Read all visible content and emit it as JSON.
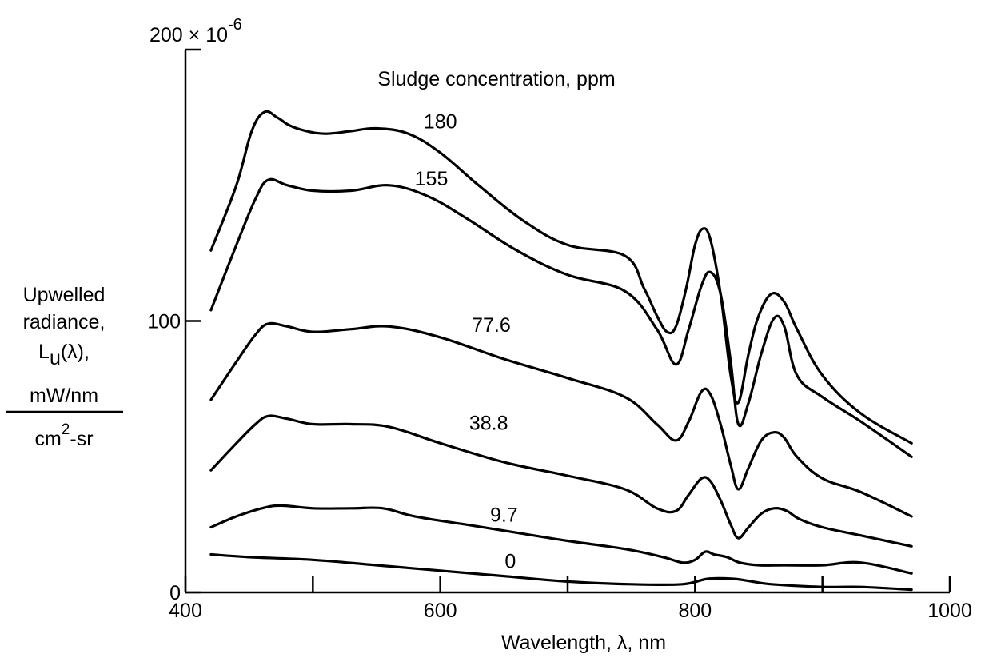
{
  "chart_data": {
    "type": "line",
    "title": "",
    "legend_title": "Sludge concentration, ppm",
    "xlabel": "Wavelength, λ, nm",
    "ylabel_lines": [
      "Upwelled",
      "radiance,",
      "L",
      "u",
      "(λ),"
    ],
    "ylabel_fraction_numerator": "mW/nm",
    "ylabel_fraction_denominator_base": "cm",
    "ylabel_fraction_denominator_exp": "2",
    "ylabel_fraction_denominator_tail": "-sr",
    "y_scale_prefix": "200 × 10",
    "y_scale_exp": "-6",
    "xlim": [
      400,
      1000
    ],
    "ylim": [
      0,
      200
    ],
    "x_ticks": [
      400,
      500,
      600,
      700,
      800,
      900,
      1000
    ],
    "x_tick_labels": [
      "400",
      "",
      "600",
      "",
      "800",
      "",
      "1000"
    ],
    "y_ticks": [
      0,
      100,
      200
    ],
    "y_tick_labels": [
      "0",
      "100",
      ""
    ],
    "series": [
      {
        "name": "180",
        "x": [
          420,
          440,
          452,
          462,
          472,
          482,
          495,
          510,
          530,
          550,
          575,
          600,
          630,
          665,
          700,
          745,
          760,
          770,
          778,
          785,
          793,
          800,
          806,
          812,
          820,
          828,
          834,
          842,
          850,
          860,
          870,
          880,
          900,
          930,
          970
        ],
        "y": [
          126,
          150,
          170,
          177,
          175,
          172,
          170,
          169,
          170,
          171,
          169,
          162,
          150,
          137,
          128,
          124,
          112,
          102,
          96,
          98,
          112,
          128,
          134,
          130,
          110,
          80,
          70,
          88,
          102,
          110,
          107,
          97,
          80,
          66,
          55
        ]
      },
      {
        "name": "155",
        "x": [
          420,
          440,
          455,
          465,
          480,
          500,
          530,
          560,
          590,
          620,
          660,
          700,
          745,
          770,
          785,
          795,
          805,
          812,
          820,
          828,
          834,
          842,
          852,
          862,
          870,
          880,
          900,
          930,
          970
        ],
        "y": [
          104,
          128,
          145,
          152,
          150,
          148,
          148,
          150,
          146,
          138,
          126,
          117,
          111,
          97,
          84,
          97,
          113,
          118,
          110,
          85,
          62,
          70,
          88,
          101,
          98,
          80,
          72,
          63,
          50
        ]
      },
      {
        "name": "77.6",
        "x": [
          420,
          440,
          455,
          465,
          480,
          500,
          530,
          560,
          600,
          650,
          700,
          745,
          770,
          785,
          795,
          805,
          812,
          820,
          828,
          834,
          842,
          852,
          862,
          870,
          880,
          900,
          930,
          970
        ],
        "y": [
          71,
          85,
          95,
          99,
          98,
          96,
          97,
          98,
          94,
          86,
          79,
          72,
          62,
          56,
          63,
          74,
          73,
          62,
          47,
          38,
          46,
          56,
          59,
          57,
          50,
          42,
          37,
          28
        ]
      },
      {
        "name": "38.8",
        "x": [
          420,
          440,
          455,
          465,
          480,
          500,
          530,
          560,
          600,
          650,
          700,
          745,
          770,
          785,
          795,
          805,
          812,
          820,
          828,
          834,
          842,
          852,
          862,
          872,
          882,
          900,
          930,
          970
        ],
        "y": [
          45,
          55,
          62,
          65,
          64,
          62,
          62,
          61,
          55,
          48,
          43,
          38,
          31,
          30,
          36,
          42,
          41,
          34,
          25,
          20,
          24,
          29,
          31,
          30,
          27,
          24,
          21,
          17
        ]
      },
      {
        "name": "9.7",
        "x": [
          420,
          440,
          460,
          475,
          500,
          530,
          555,
          580,
          620,
          660,
          700,
          745,
          775,
          790,
          800,
          808,
          815,
          825,
          835,
          850,
          870,
          900,
          930,
          970
        ],
        "y": [
          24,
          28,
          31,
          32,
          31,
          31,
          31,
          28,
          25,
          22,
          19,
          16,
          13,
          11,
          12,
          15,
          14,
          13,
          11,
          10,
          10,
          10,
          11,
          7
        ]
      },
      {
        "name": "0",
        "x": [
          420,
          450,
          500,
          550,
          600,
          650,
          700,
          750,
          790,
          810,
          830,
          845,
          860,
          900,
          930,
          970
        ],
        "y": [
          14,
          13,
          12,
          10,
          8,
          6,
          4,
          3,
          3,
          5,
          5,
          4,
          3,
          2,
          2,
          1
        ]
      }
    ],
    "series_label_anchors": [
      {
        "name": "180",
        "x": 600,
        "y": 171
      },
      {
        "name": "155",
        "x": 593,
        "y": 150
      },
      {
        "name": "77.6",
        "x": 640,
        "y": 96
      },
      {
        "name": "38.8",
        "x": 638,
        "y": 60
      },
      {
        "name": "9.7",
        "x": 650,
        "y": 26
      },
      {
        "name": "0",
        "x": 655,
        "y": 9
      }
    ],
    "grid": false,
    "legend": "none"
  }
}
